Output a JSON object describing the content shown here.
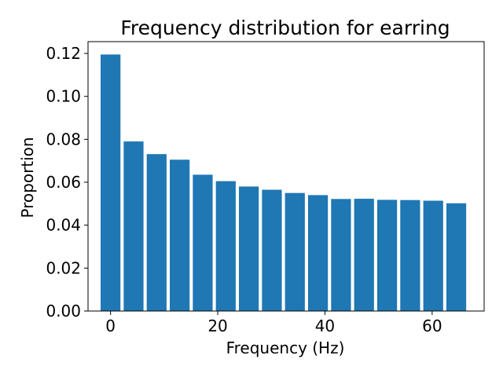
{
  "chart_data": {
    "type": "bar",
    "title": "Frequency distribution for earring",
    "xlabel": "Frequency (Hz)",
    "ylabel": "Proportion",
    "x": [
      0,
      4.3,
      8.6,
      12.9,
      17.2,
      21.5,
      25.8,
      30.1,
      34.4,
      38.7,
      43.0,
      47.3,
      51.6,
      55.9,
      60.2,
      64.5
    ],
    "values": [
      0.1195,
      0.079,
      0.0731,
      0.0705,
      0.0635,
      0.0605,
      0.058,
      0.0565,
      0.055,
      0.054,
      0.0522,
      0.0523,
      0.0518,
      0.0517,
      0.0514,
      0.0502
    ],
    "bar_color": "#1f77b4",
    "xlim": [
      -4.2,
      69.7
    ],
    "ylim": [
      0,
      0.1255
    ],
    "xticks": [
      0,
      20,
      40,
      60
    ],
    "xtick_labels": [
      "0",
      "20",
      "40",
      "60"
    ],
    "yticks": [
      0,
      0.02,
      0.04,
      0.06,
      0.08,
      0.1,
      0.12
    ],
    "ytick_labels": [
      "0.00",
      "0.02",
      "0.04",
      "0.06",
      "0.08",
      "0.10",
      "0.12"
    ],
    "grid": false,
    "legend": "none"
  }
}
